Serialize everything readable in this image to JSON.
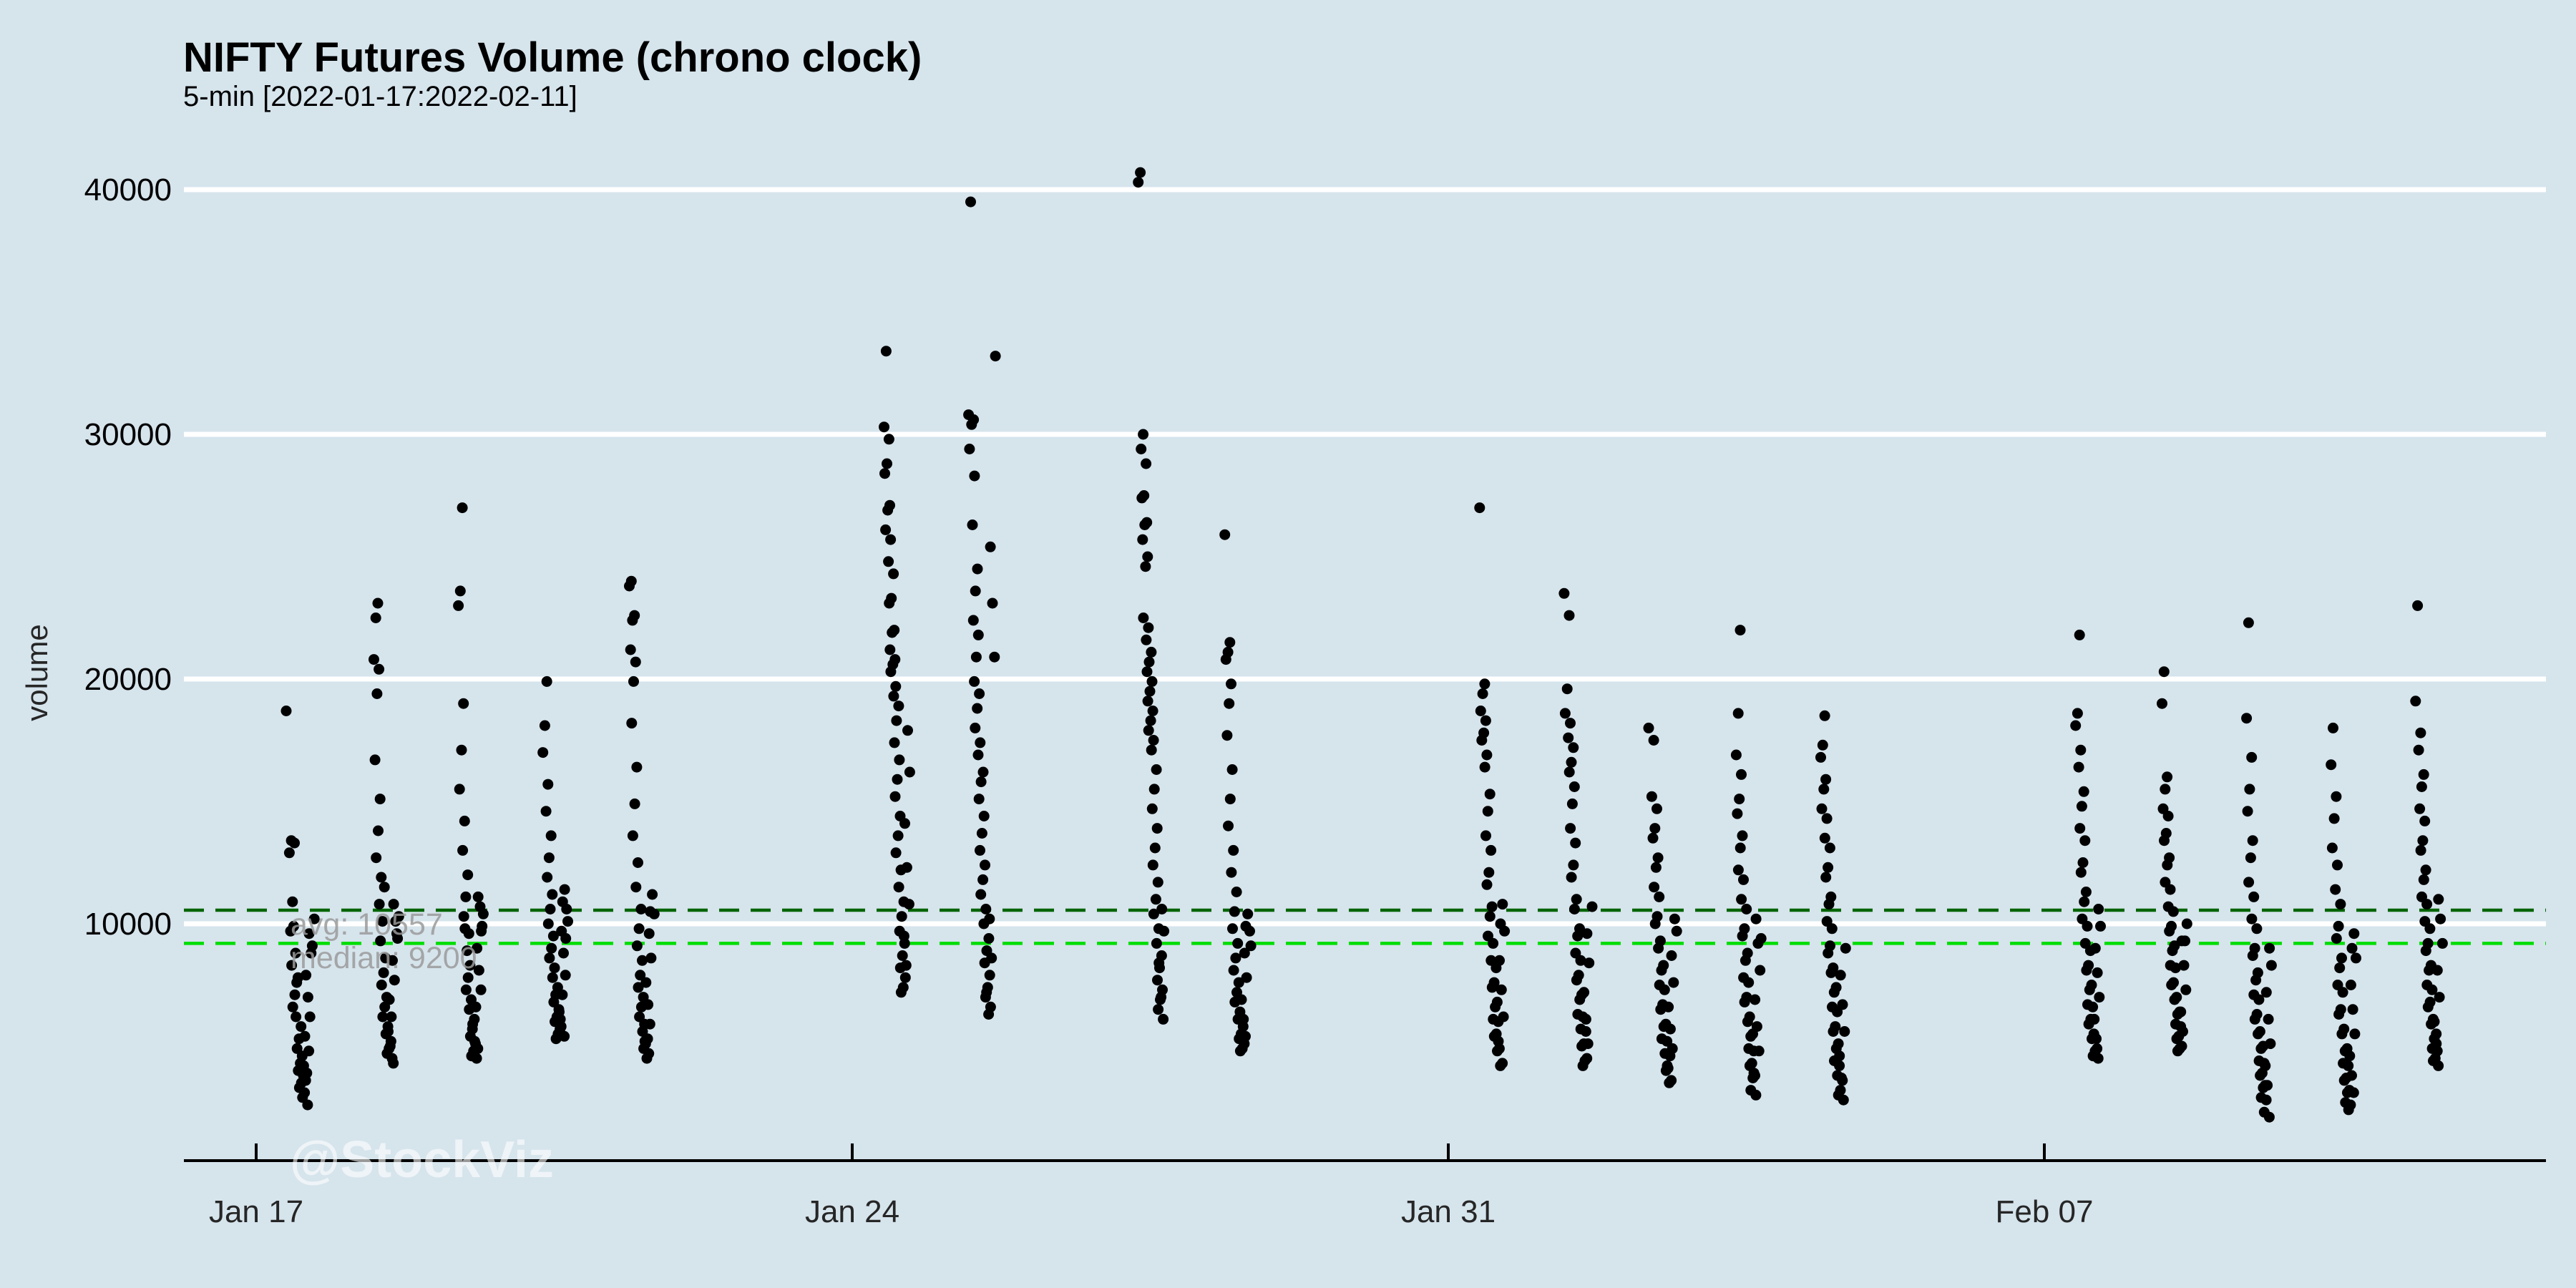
{
  "title": "NIFTY Futures Volume (chrono clock)",
  "subtitle": "5-min [2022-01-17:2022-02-11]",
  "watermark": "@StockViz",
  "colors": {
    "background": "#d6e4ec",
    "gridline": "#ffffff",
    "point": "#000000",
    "avg_line": "#006400",
    "median_line": "#00dd00",
    "stat_label": "#9b9b9b",
    "axis": "#000000",
    "tick_label": "#262626",
    "watermark": "#ffffff"
  },
  "chart_data": {
    "type": "scatter",
    "title": "NIFTY Futures Volume (chrono clock)",
    "subtitle": "5-min [2022-01-17:2022-02-11]",
    "xlabel": "",
    "ylabel": "volume",
    "ylim": [
      0,
      42000
    ],
    "grid": "horizontal-only",
    "y_ticks": [
      10000,
      20000,
      30000,
      40000
    ],
    "x_ticks": [
      "Jan 17",
      "Jan 24",
      "Jan 31",
      "Feb 07"
    ],
    "avg_line": {
      "label": "avg: 10557",
      "value": 10557
    },
    "median_line": {
      "label": "median: 9200",
      "value": 9200
    },
    "days": [
      {
        "date": "2022-01-17",
        "volumes": [
          18700,
          13400,
          12900,
          13300,
          10900,
          9700,
          8800,
          9900,
          8300,
          7600,
          7100,
          6600,
          7800,
          6200,
          5800,
          5300,
          4900,
          4600,
          4300,
          4000,
          3800,
          3500,
          3300,
          3100,
          2900,
          2600,
          3600,
          4200,
          4800,
          3900,
          5400,
          6200,
          7000,
          7900,
          8800,
          9600,
          10200,
          9100
        ]
      },
      {
        "date": "2022-01-18",
        "volumes": [
          23100,
          22500,
          20800,
          20400,
          19400,
          16700,
          15100,
          13800,
          12700,
          11900,
          10800,
          11500,
          10100,
          9300,
          8600,
          8000,
          7500,
          7000,
          6600,
          6200,
          5800,
          5500,
          5200,
          4900,
          4700,
          4500,
          5000,
          5600,
          4300,
          6200,
          6900,
          7700,
          8500,
          9400,
          10100,
          10800,
          10300,
          9600
        ]
      },
      {
        "date": "2022-01-19",
        "volumes": [
          27000,
          23600,
          23000,
          19000,
          17100,
          15500,
          14200,
          13000,
          12000,
          11100,
          10300,
          9600,
          8900,
          9800,
          8300,
          7800,
          7300,
          6900,
          6500,
          6100,
          5700,
          5400,
          5100,
          4800,
          4600,
          4500,
          5200,
          5900,
          4900,
          6600,
          7300,
          8100,
          9000,
          9900,
          10700,
          11100,
          10400,
          9700
        ]
      },
      {
        "date": "2022-01-20",
        "volumes": [
          19900,
          18100,
          17000,
          15700,
          14600,
          13600,
          12700,
          11900,
          11200,
          10600,
          10000,
          9500,
          9000,
          8600,
          8200,
          7800,
          7400,
          7100,
          6800,
          6500,
          6200,
          6000,
          5700,
          5500,
          5300,
          5800,
          6400,
          5400,
          7100,
          6100,
          7900,
          8800,
          9700,
          10600,
          11400,
          10900,
          10100,
          9400
        ]
      },
      {
        "date": "2022-01-21",
        "volumes": [
          24000,
          23800,
          22600,
          22400,
          21200,
          20700,
          19900,
          18200,
          16400,
          14900,
          13600,
          12500,
          11500,
          10600,
          9800,
          9100,
          8500,
          7900,
          7400,
          7000,
          6600,
          6200,
          5900,
          5600,
          5300,
          5100,
          4900,
          4700,
          4500,
          5200,
          5900,
          6700,
          7600,
          8600,
          9600,
          10400,
          11200,
          10500
        ]
      },
      {
        "date": "2022-01-24",
        "volumes": [
          33400,
          30300,
          29800,
          28800,
          28400,
          27100,
          26900,
          26100,
          25700,
          24800,
          24300,
          23300,
          23100,
          22000,
          21900,
          21200,
          20800,
          20600,
          20300,
          19700,
          19300,
          18900,
          18300,
          17400,
          16700,
          15900,
          15200,
          14400,
          13600,
          12900,
          12200,
          11500,
          10900,
          10300,
          9700,
          9200,
          8700,
          8200,
          7800,
          7400,
          7200,
          8300,
          9500,
          10800,
          12300,
          14100,
          16200,
          17900
        ]
      },
      {
        "date": "2022-01-25",
        "volumes": [
          39500,
          30800,
          30600,
          30400,
          29400,
          28300,
          26300,
          24500,
          23600,
          22400,
          21800,
          20900,
          19900,
          19400,
          18800,
          18000,
          17400,
          16900,
          16200,
          15800,
          15100,
          14400,
          13700,
          13000,
          12400,
          11800,
          11200,
          10600,
          10000,
          9400,
          8900,
          8400,
          7900,
          7400,
          7000,
          6600,
          6300,
          7200,
          8600,
          10200,
          20900,
          23100,
          25400,
          33200
        ]
      },
      {
        "date": "2022-01-27",
        "volumes": [
          40700,
          40300,
          30000,
          29400,
          28800,
          27500,
          27400,
          26400,
          26300,
          25700,
          25000,
          24600,
          22500,
          22100,
          21600,
          21100,
          20700,
          20300,
          19900,
          19500,
          19100,
          18700,
          18300,
          17900,
          17500,
          17100,
          16300,
          15500,
          14700,
          13900,
          13100,
          12400,
          11700,
          11000,
          10400,
          9800,
          9200,
          8700,
          8200,
          7700,
          7300,
          6900,
          6500,
          6100,
          7000,
          8400,
          9700,
          10600
        ]
      },
      {
        "date": "2022-01-28",
        "volumes": [
          25900,
          21500,
          21100,
          20800,
          19800,
          19000,
          17700,
          16300,
          15100,
          14000,
          13000,
          12100,
          11300,
          10500,
          9800,
          9200,
          8600,
          8100,
          7600,
          7200,
          6800,
          6400,
          6100,
          5800,
          5500,
          5300,
          5100,
          4900,
          4800,
          5400,
          6100,
          6900,
          7800,
          8800,
          9700,
          10400,
          9900,
          9100
        ]
      },
      {
        "date": "2022-01-31",
        "volumes": [
          27000,
          19800,
          19400,
          18700,
          18300,
          17800,
          17500,
          16900,
          16400,
          15300,
          14600,
          13600,
          13000,
          12100,
          11600,
          10700,
          10300,
          9500,
          9200,
          8500,
          8200,
          7600,
          7400,
          6800,
          6600,
          6100,
          6000,
          5500,
          5400,
          4900,
          4800,
          4300,
          4200,
          5200,
          6200,
          7300,
          8500,
          9700,
          10800,
          10000
        ]
      },
      {
        "date": "2022-02-01",
        "volumes": [
          23500,
          22600,
          19600,
          18600,
          18200,
          17600,
          17200,
          16600,
          16200,
          15600,
          14900,
          13900,
          13300,
          12400,
          11900,
          11000,
          10600,
          9800,
          9500,
          8800,
          8500,
          7900,
          7700,
          7100,
          6900,
          6300,
          6200,
          5700,
          5600,
          5100,
          5000,
          4500,
          4400,
          4200,
          5100,
          6100,
          7200,
          8400,
          9600,
          10700
        ]
      },
      {
        "date": "2022-02-02",
        "volumes": [
          18000,
          17500,
          15200,
          14700,
          13900,
          13500,
          12700,
          12300,
          11500,
          11100,
          10300,
          10000,
          9300,
          9000,
          8300,
          8100,
          7500,
          7300,
          6700,
          6500,
          5900,
          5800,
          5300,
          5200,
          4700,
          4600,
          4100,
          4000,
          3600,
          3500,
          4200,
          4900,
          5700,
          6600,
          7600,
          8700,
          9700,
          10200
        ]
      },
      {
        "date": "2022-02-03",
        "volumes": [
          22000,
          18600,
          16900,
          16100,
          15100,
          14500,
          13600,
          13100,
          12200,
          11800,
          11000,
          10600,
          9800,
          9500,
          8800,
          8500,
          7800,
          7600,
          7000,
          6800,
          6200,
          6000,
          5500,
          5400,
          4900,
          4800,
          4300,
          4200,
          3800,
          3700,
          3200,
          3000,
          3900,
          4800,
          5800,
          6900,
          8100,
          9200,
          10200,
          9400
        ]
      },
      {
        "date": "2022-02-04",
        "volumes": [
          18500,
          17300,
          16800,
          15900,
          15500,
          14700,
          14300,
          13500,
          13100,
          12300,
          11900,
          11100,
          10800,
          10100,
          9800,
          9100,
          8800,
          8200,
          8000,
          7400,
          7200,
          6600,
          6400,
          5800,
          5600,
          5100,
          4900,
          4400,
          4200,
          3800,
          3600,
          3200,
          3000,
          2800,
          3700,
          4600,
          5600,
          6700,
          7900,
          9000
        ]
      },
      {
        "date": "2022-02-07",
        "volumes": [
          21800,
          18600,
          18100,
          17100,
          16400,
          15400,
          14800,
          13900,
          13400,
          12500,
          12100,
          11300,
          10900,
          10200,
          9900,
          9200,
          8900,
          8300,
          8100,
          7500,
          7300,
          6700,
          6600,
          6100,
          5900,
          5500,
          5300,
          4900,
          4800,
          4600,
          4500,
          5300,
          6100,
          7000,
          8000,
          9000,
          9900,
          10600
        ]
      },
      {
        "date": "2022-02-08",
        "volumes": [
          20300,
          19000,
          16000,
          15500,
          14700,
          14400,
          13700,
          13400,
          12700,
          12400,
          11700,
          11400,
          10700,
          10500,
          9900,
          9700,
          9100,
          8900,
          8300,
          8200,
          7600,
          7500,
          7000,
          6900,
          6400,
          6300,
          5900,
          5800,
          5400,
          5300,
          5000,
          4900,
          4800,
          5600,
          6400,
          7300,
          8300,
          9300,
          10000,
          9300
        ]
      },
      {
        "date": "2022-02-09",
        "volumes": [
          22300,
          18400,
          16800,
          15500,
          14600,
          13400,
          12700,
          11700,
          11100,
          10200,
          9800,
          9000,
          8700,
          8000,
          7700,
          7100,
          6900,
          6300,
          6100,
          5600,
          5500,
          5000,
          4900,
          4400,
          4300,
          3900,
          3800,
          3400,
          3300,
          2900,
          2800,
          2300,
          2100,
          3400,
          4200,
          5100,
          6100,
          7200,
          8300,
          9000
        ]
      },
      {
        "date": "2022-02-10",
        "volumes": [
          18000,
          16500,
          15200,
          14300,
          13100,
          12400,
          11400,
          10800,
          9900,
          9400,
          8600,
          8200,
          7500,
          7200,
          6500,
          6300,
          5700,
          5500,
          4900,
          4800,
          4300,
          4200,
          3700,
          3600,
          3200,
          3100,
          2700,
          2600,
          2400,
          3100,
          3800,
          4600,
          5500,
          6500,
          7500,
          8600,
          9600,
          9000
        ]
      },
      {
        "date": "2022-02-11",
        "volumes": [
          23000,
          19100,
          17800,
          17100,
          16100,
          15600,
          14700,
          14200,
          13400,
          13000,
          12200,
          11800,
          11100,
          10800,
          10100,
          9800,
          9200,
          8900,
          8300,
          8100,
          7500,
          7300,
          6800,
          6600,
          6100,
          5900,
          5500,
          5300,
          4900,
          4800,
          4500,
          4400,
          4200,
          5100,
          6000,
          7000,
          8100,
          9200,
          10200,
          11000
        ]
      }
    ]
  }
}
